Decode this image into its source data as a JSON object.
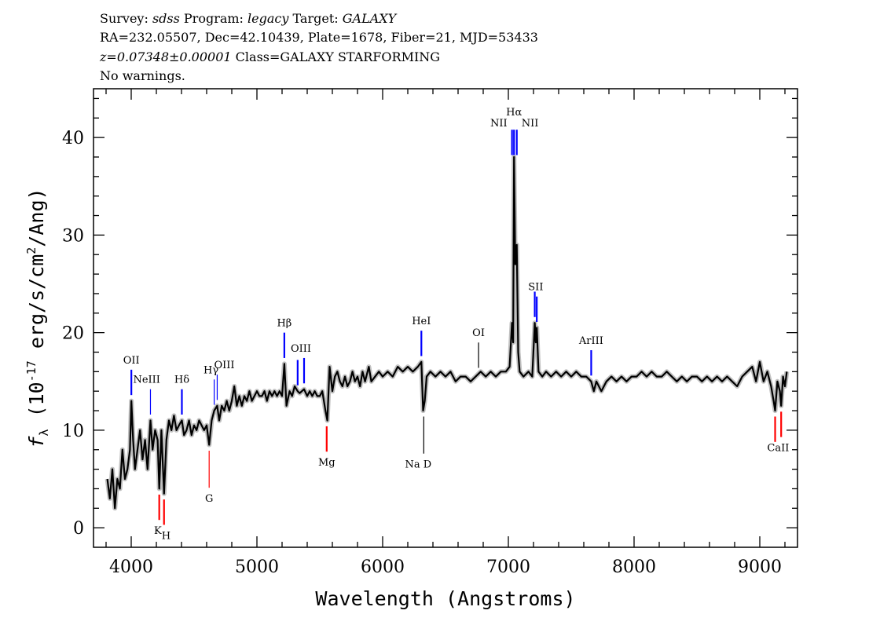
{
  "header": {
    "line1": {
      "survey_label": "Survey: ",
      "survey": "sdss",
      "program_label": " Program: ",
      "program": "legacy",
      "target_label": " Target: ",
      "target": "GALAXY"
    },
    "line2": "RA=232.05507, Dec=42.10439, Plate=1678, Fiber=21, MJD=53433",
    "line3": {
      "z": "z=0.07348±0.00001",
      "class": " Class=GALAXY STARFORMING"
    },
    "line4": "No warnings."
  },
  "chart_data": {
    "type": "line",
    "xlabel": "Wavelength (Angstroms)",
    "ylabel": {
      "f": "f",
      "sub": "λ",
      "pre": " (10",
      "exp": "-17",
      "mid": " erg/s/cm",
      "exp2": "2",
      "post": "/Ang)"
    },
    "xlim": [
      3700,
      9300
    ],
    "ylim": [
      -2,
      45
    ],
    "xticks": [
      4000,
      5000,
      6000,
      7000,
      8000,
      9000
    ],
    "yticks": [
      0,
      10,
      20,
      30,
      40
    ],
    "grid": false,
    "colors": {
      "spectrum": "#000000",
      "error": "#c0c0c0",
      "emission": "#0000ff",
      "absorption": "#ff0000",
      "other": "#000000"
    },
    "spectrum": {
      "x": [
        3810,
        3830,
        3850,
        3870,
        3890,
        3910,
        3930,
        3950,
        3970,
        3990,
        4001,
        4015,
        4030,
        4050,
        4070,
        4090,
        4110,
        4130,
        4153,
        4170,
        4190,
        4210,
        4223,
        4240,
        4261,
        4280,
        4300,
        4320,
        4340,
        4360,
        4380,
        4403,
        4420,
        4440,
        4460,
        4480,
        4500,
        4520,
        4540,
        4560,
        4580,
        4600,
        4620,
        4640,
        4660,
        4684,
        4700,
        4720,
        4740,
        4760,
        4780,
        4800,
        4820,
        4840,
        4860,
        4880,
        4900,
        4920,
        4940,
        4960,
        4980,
        5000,
        5020,
        5040,
        5060,
        5080,
        5100,
        5120,
        5140,
        5160,
        5180,
        5200,
        5218,
        5235,
        5260,
        5280,
        5300,
        5324,
        5340,
        5375,
        5400,
        5420,
        5440,
        5460,
        5480,
        5500,
        5520,
        5545,
        5560,
        5578,
        5600,
        5620,
        5640,
        5660,
        5680,
        5700,
        5720,
        5740,
        5760,
        5780,
        5800,
        5820,
        5840,
        5860,
        5890,
        5910,
        5940,
        5970,
        6000,
        6040,
        6080,
        6120,
        6160,
        6200,
        6240,
        6280,
        6308,
        6322,
        6335,
        6350,
        6380,
        6420,
        6460,
        6500,
        6540,
        6580,
        6620,
        6660,
        6700,
        6740,
        6780,
        6820,
        6860,
        6900,
        6940,
        6980,
        7010,
        7029,
        7038,
        7045,
        7055,
        7067,
        7078,
        7090,
        7120,
        7160,
        7190,
        7210,
        7218,
        7226,
        7240,
        7270,
        7300,
        7340,
        7380,
        7420,
        7460,
        7500,
        7540,
        7580,
        7620,
        7659,
        7680,
        7700,
        7740,
        7780,
        7820,
        7860,
        7900,
        7940,
        7980,
        8020,
        8060,
        8100,
        8140,
        8180,
        8220,
        8260,
        8300,
        8340,
        8380,
        8420,
        8460,
        8500,
        8540,
        8580,
        8620,
        8660,
        8700,
        8740,
        8780,
        8820,
        8860,
        8900,
        8940,
        8970,
        9000,
        9030,
        9060,
        9090,
        9110,
        9122,
        9140,
        9160,
        9170,
        9185,
        9200,
        9215
      ],
      "y": [
        5,
        3,
        6,
        2,
        5,
        4,
        8,
        5,
        6,
        8,
        13,
        9,
        6,
        8,
        10,
        7,
        9,
        6,
        11,
        8,
        10,
        9,
        4,
        10,
        3.5,
        9,
        11,
        10,
        11.5,
        10,
        10.5,
        11,
        9.5,
        10,
        11,
        9.5,
        10.5,
        10,
        11,
        10.5,
        10,
        10.5,
        8.5,
        11,
        12,
        12.5,
        11,
        12.5,
        12,
        13,
        12,
        13,
        14.5,
        12.5,
        13.5,
        12.5,
        13.5,
        13,
        14,
        13,
        13.5,
        14,
        13.5,
        13.5,
        14,
        13,
        14,
        13.5,
        14,
        13.5,
        14,
        13.5,
        16.8,
        12.5,
        14,
        13.5,
        14.5,
        14,
        13.8,
        14.2,
        13.5,
        14,
        13.5,
        14,
        13.5,
        13.5,
        14,
        12,
        11,
        16.5,
        14,
        15.5,
        16,
        15,
        14.5,
        15.5,
        14.5,
        15,
        16,
        15,
        15.5,
        14.5,
        16,
        15,
        16.5,
        15,
        15.5,
        16,
        15.5,
        16,
        15.5,
        16.5,
        16,
        16.5,
        16,
        16.5,
        17,
        12,
        13,
        15.5,
        16,
        15.5,
        16,
        15.5,
        16,
        15,
        15.5,
        15.5,
        15,
        15.5,
        16,
        15.5,
        16,
        15.5,
        16,
        16,
        16.5,
        21,
        19,
        38,
        27,
        29,
        18,
        16,
        15.5,
        16,
        15.5,
        21,
        19,
        20.5,
        16,
        15.5,
        16,
        15.5,
        16,
        15.5,
        16,
        15.5,
        16,
        15.5,
        15.5,
        15,
        14,
        15,
        14,
        15,
        15.5,
        15,
        15.5,
        15,
        15.5,
        15.5,
        16,
        15.5,
        16,
        15.5,
        15.5,
        16,
        15.5,
        15,
        15.5,
        15,
        15.5,
        15.5,
        15,
        15.5,
        15,
        15.5,
        15,
        15.5,
        15,
        14.5,
        15.5,
        16,
        16.5,
        15,
        17,
        15,
        16,
        14.5,
        13,
        12,
        15,
        14,
        12.5,
        15.5,
        14.5,
        16
      ]
    },
    "lines": [
      {
        "label": "OII",
        "wavelength": 4001,
        "kind": "emission"
      },
      {
        "label": "NeIII",
        "wavelength": 4153,
        "kind": "emission"
      },
      {
        "label": "Hδ",
        "wavelength": 4403,
        "kind": "emission"
      },
      {
        "label": "Hγ",
        "wavelength": 4660,
        "kind": "emission"
      },
      {
        "label": "OIII",
        "wavelength": 4684,
        "kind": "emission"
      },
      {
        "label": "Hβ",
        "wavelength": 5218,
        "kind": "emission"
      },
      {
        "label": "",
        "wavelength": 5324,
        "kind": "emission"
      },
      {
        "label": "OIII",
        "wavelength": 5375,
        "kind": "emission"
      },
      {
        "label": "HeI",
        "wavelength": 6308,
        "kind": "emission"
      },
      {
        "label": "OI",
        "wavelength": 6763,
        "kind": "other"
      },
      {
        "label": "NII",
        "wavelength": 7029,
        "kind": "emission"
      },
      {
        "label": "Hα",
        "wavelength": 7045,
        "kind": "emission"
      },
      {
        "label": "NII",
        "wavelength": 7067,
        "kind": "emission"
      },
      {
        "label": "",
        "wavelength": 7210,
        "kind": "emission"
      },
      {
        "label": "SII",
        "wavelength": 7226,
        "kind": "emission"
      },
      {
        "label": "ArIII",
        "wavelength": 7659,
        "kind": "emission"
      },
      {
        "label": "K",
        "wavelength": 4223,
        "kind": "absorption"
      },
      {
        "label": "H",
        "wavelength": 4261,
        "kind": "absorption"
      },
      {
        "label": "G",
        "wavelength": 4620,
        "kind": "absorption"
      },
      {
        "label": "Mg",
        "wavelength": 5555,
        "kind": "absorption"
      },
      {
        "label": "Na D",
        "wavelength": 6327,
        "kind": "other-absorption"
      },
      {
        "label": "",
        "wavelength": 9122,
        "kind": "absorption"
      },
      {
        "label": "CaII",
        "wavelength": 9170,
        "kind": "absorption"
      }
    ]
  }
}
